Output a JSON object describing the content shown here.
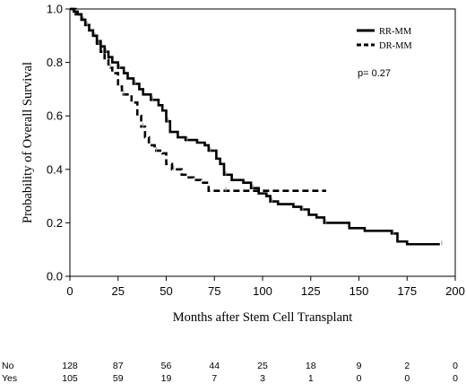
{
  "chart_data": {
    "type": "line",
    "subtype": "kaplan-meier step curve",
    "xlabel": "Months after Stem Cell Transplant",
    "ylabel": "Probability of Overall Survival",
    "xlim": [
      0,
      200
    ],
    "ylim": [
      0,
      1.0
    ],
    "xticks": [
      0,
      25,
      50,
      75,
      100,
      125,
      150,
      175,
      200
    ],
    "yticks": [
      0.0,
      0.2,
      0.4,
      0.6,
      0.8,
      1.0
    ],
    "ytick_labels": [
      "0.0",
      "0.2",
      "0.4",
      "0.6",
      "0.8",
      "1.0"
    ],
    "grid": false,
    "legend_position": "top-right",
    "annotation": "p= 0.27",
    "series": [
      {
        "name": "RR-MM",
        "line_style": "solid",
        "color": "#000000",
        "points": [
          [
            0,
            1.0
          ],
          [
            2,
            0.99
          ],
          [
            4,
            0.98
          ],
          [
            6,
            0.96
          ],
          [
            8,
            0.94
          ],
          [
            10,
            0.92
          ],
          [
            12,
            0.9
          ],
          [
            14,
            0.88
          ],
          [
            16,
            0.86
          ],
          [
            18,
            0.84
          ],
          [
            20,
            0.82
          ],
          [
            22,
            0.8
          ],
          [
            25,
            0.78
          ],
          [
            28,
            0.76
          ],
          [
            30,
            0.74
          ],
          [
            33,
            0.72
          ],
          [
            36,
            0.7
          ],
          [
            38,
            0.68
          ],
          [
            42,
            0.66
          ],
          [
            46,
            0.64
          ],
          [
            48,
            0.62
          ],
          [
            50,
            0.58
          ],
          [
            52,
            0.54
          ],
          [
            56,
            0.52
          ],
          [
            60,
            0.51
          ],
          [
            66,
            0.5
          ],
          [
            70,
            0.49
          ],
          [
            72,
            0.47
          ],
          [
            76,
            0.44
          ],
          [
            78,
            0.42
          ],
          [
            80,
            0.38
          ],
          [
            84,
            0.36
          ],
          [
            90,
            0.35
          ],
          [
            94,
            0.33
          ],
          [
            98,
            0.31
          ],
          [
            102,
            0.3
          ],
          [
            104,
            0.28
          ],
          [
            108,
            0.27
          ],
          [
            116,
            0.26
          ],
          [
            120,
            0.25
          ],
          [
            124,
            0.23
          ],
          [
            128,
            0.22
          ],
          [
            132,
            0.2
          ],
          [
            145,
            0.18
          ],
          [
            153,
            0.17
          ],
          [
            167,
            0.16
          ],
          [
            170,
            0.13
          ],
          [
            175,
            0.12
          ],
          [
            192,
            0.12
          ]
        ]
      },
      {
        "name": "DR-MM",
        "line_style": "dashed",
        "color": "#000000",
        "points": [
          [
            0,
            1.0
          ],
          [
            3,
            0.98
          ],
          [
            6,
            0.96
          ],
          [
            8,
            0.94
          ],
          [
            10,
            0.92
          ],
          [
            12,
            0.9
          ],
          [
            14,
            0.87
          ],
          [
            16,
            0.84
          ],
          [
            18,
            0.81
          ],
          [
            20,
            0.78
          ],
          [
            22,
            0.76
          ],
          [
            25,
            0.71
          ],
          [
            27,
            0.68
          ],
          [
            32,
            0.65
          ],
          [
            35,
            0.6
          ],
          [
            37,
            0.56
          ],
          [
            39,
            0.52
          ],
          [
            41,
            0.49
          ],
          [
            44,
            0.47
          ],
          [
            48,
            0.46
          ],
          [
            50,
            0.42
          ],
          [
            53,
            0.4
          ],
          [
            58,
            0.38
          ],
          [
            60,
            0.37
          ],
          [
            64,
            0.36
          ],
          [
            68,
            0.35
          ],
          [
            72,
            0.32
          ],
          [
            80,
            0.32
          ],
          [
            133,
            0.32
          ]
        ]
      }
    ],
    "risk_table": {
      "times": [
        0,
        25,
        50,
        75,
        100,
        125,
        150,
        175,
        200
      ],
      "rows": [
        {
          "label": "No",
          "values": [
            "128",
            "87",
            "56",
            "44",
            "25",
            "18",
            "9",
            "2",
            "0"
          ]
        },
        {
          "label": "Yes",
          "values": [
            "105",
            "59",
            "19",
            "7",
            "3",
            "1",
            "0",
            "0",
            "0"
          ]
        }
      ]
    }
  }
}
